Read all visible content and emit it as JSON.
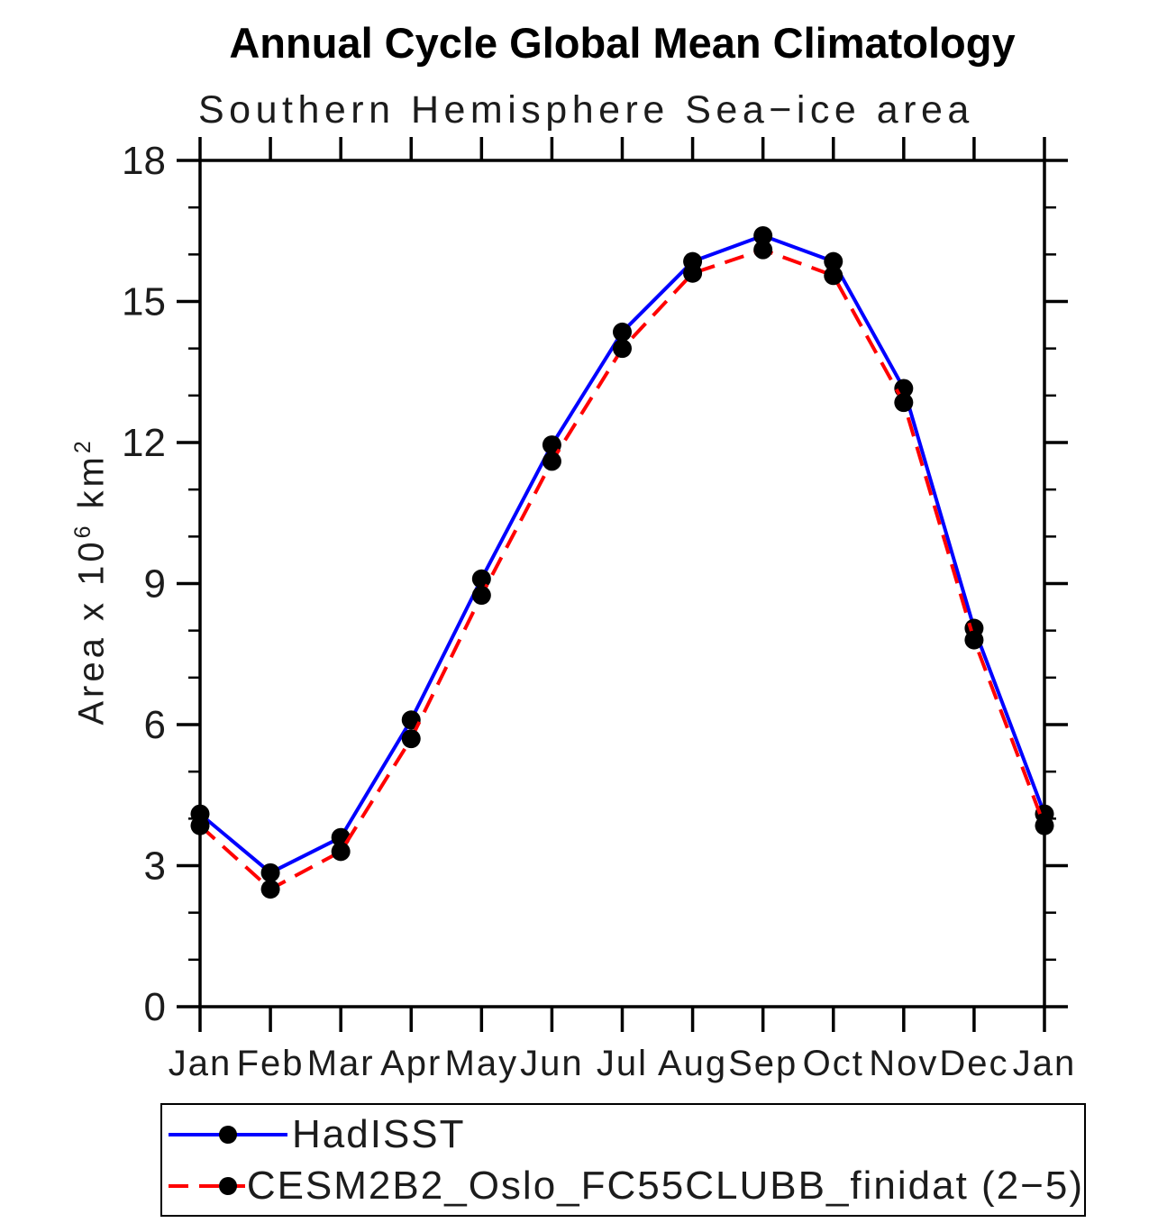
{
  "chart_data": {
    "type": "line",
    "title": "Annual Cycle Global Mean Climatology",
    "subtitle": "Southern Hemisphere Sea−ice area",
    "ylabel": "Area x 10⁶ km²",
    "ylabel_parts": {
      "prefix": "Area x 10",
      "exponent": "6",
      "unit": " km",
      "unit_exponent": "2"
    },
    "categories": [
      "Jan",
      "Feb",
      "Mar",
      "Apr",
      "May",
      "Jun",
      "Jul",
      "Aug",
      "Sep",
      "Oct",
      "Nov",
      "Dec",
      "Jan"
    ],
    "ylim": [
      0,
      18
    ],
    "yticks": [
      0,
      3,
      6,
      9,
      12,
      15,
      18
    ],
    "ytick_major_interval": 3,
    "ytick_minor_interval": 1,
    "grid": false,
    "legend_position": "bottom",
    "axis_color": "#000000",
    "marker_color": "#000000",
    "series": [
      {
        "name": "HadISST",
        "color": "#0000ff",
        "line_style": "solid",
        "marker": "circle",
        "marker_color": "#000000",
        "values": [
          4.1,
          2.85,
          3.6,
          6.1,
          9.1,
          11.95,
          14.35,
          15.85,
          16.4,
          15.85,
          13.15,
          8.05,
          4.1
        ]
      },
      {
        "name": "CESM2B2_Oslo_FC55CLUBB_finidat (2−5)",
        "color": "#ff0000",
        "line_style": "dashed",
        "marker": "circle",
        "marker_color": "#000000",
        "values": [
          3.85,
          2.5,
          3.3,
          5.7,
          8.75,
          11.6,
          14.0,
          15.6,
          16.1,
          15.55,
          12.85,
          7.8,
          3.85
        ]
      }
    ]
  }
}
